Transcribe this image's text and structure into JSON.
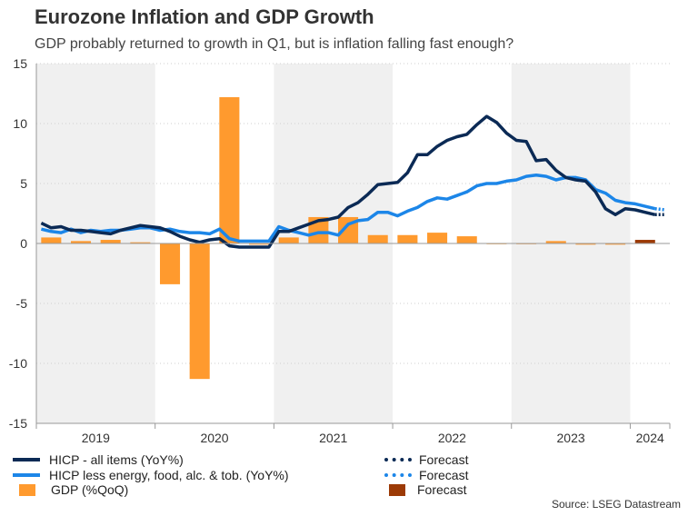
{
  "title": "Eurozone Inflation and GDP Growth",
  "subtitle": "GDP probably returned to growth in Q1, but is inflation falling fast enough?",
  "source": "Source: LSEG Datastream",
  "legend": {
    "hicp": "HICP - all items (YoY%)",
    "core": "HICP less energy, food, alc. & tob. (YoY%)",
    "gdp": "GDP (%QoQ)",
    "hicp_fc": "Forecast",
    "core_fc": "Forecast",
    "gdp_fc": "Forecast"
  },
  "colors": {
    "hicp": "#0b2a55",
    "core": "#1c86e8",
    "gdp": "#ff9a2e",
    "gdp_forecast": "#9c3a06",
    "shade": "#f0f0f0"
  },
  "chart_data": {
    "type": "bar+line",
    "ylim": [
      -15,
      15
    ],
    "y_ticks": [
      15,
      10,
      5,
      0,
      -5,
      -10,
      -15
    ],
    "x_range": [
      "2019-01",
      "2024-04"
    ],
    "year_labels": [
      "2019",
      "2020",
      "2021",
      "2022",
      "2023",
      "2024"
    ],
    "series": [
      {
        "name": "HICP - all items (YoY%)",
        "type": "line",
        "x": [
          "2019-01",
          "2019-02",
          "2019-03",
          "2019-04",
          "2019-05",
          "2019-06",
          "2019-07",
          "2019-08",
          "2019-09",
          "2019-10",
          "2019-11",
          "2019-12",
          "2020-01",
          "2020-02",
          "2020-03",
          "2020-04",
          "2020-05",
          "2020-06",
          "2020-07",
          "2020-08",
          "2020-09",
          "2020-10",
          "2020-11",
          "2020-12",
          "2021-01",
          "2021-02",
          "2021-03",
          "2021-04",
          "2021-05",
          "2021-06",
          "2021-07",
          "2021-08",
          "2021-09",
          "2021-10",
          "2021-11",
          "2021-12",
          "2022-01",
          "2022-02",
          "2022-03",
          "2022-04",
          "2022-05",
          "2022-06",
          "2022-07",
          "2022-08",
          "2022-09",
          "2022-10",
          "2022-11",
          "2022-12",
          "2023-01",
          "2023-02",
          "2023-03",
          "2023-04",
          "2023-05",
          "2023-06",
          "2023-07",
          "2023-08",
          "2023-09",
          "2023-10",
          "2023-11",
          "2023-12",
          "2024-01",
          "2024-02",
          "2024-03"
        ],
        "values": [
          1.7,
          1.3,
          1.4,
          1.1,
          1.1,
          1.0,
          0.9,
          0.8,
          1.1,
          1.3,
          1.5,
          1.4,
          1.3,
          1.0,
          0.6,
          0.3,
          0.1,
          0.3,
          0.4,
          -0.2,
          -0.3,
          -0.3,
          -0.3,
          -0.3,
          1.0,
          1.0,
          1.3,
          1.6,
          1.9,
          2.0,
          2.2,
          3.0,
          3.4,
          4.1,
          4.9,
          5.0,
          5.1,
          5.9,
          7.4,
          7.4,
          8.1,
          8.6,
          8.9,
          9.1,
          9.9,
          10.6,
          10.1,
          9.2,
          8.6,
          8.5,
          6.9,
          7.0,
          6.1,
          5.5,
          5.3,
          5.2,
          4.3,
          2.9,
          2.4,
          2.9,
          2.8,
          2.6,
          2.4
        ]
      },
      {
        "name": "Forecast",
        "type": "line",
        "style": "dotted",
        "x": [
          "2024-03",
          "2024-04"
        ],
        "values": [
          2.4,
          2.4
        ]
      },
      {
        "name": "HICP less energy, food, alc. & tob. (YoY%)",
        "type": "line",
        "x": [
          "2019-01",
          "2019-02",
          "2019-03",
          "2019-04",
          "2019-05",
          "2019-06",
          "2019-07",
          "2019-08",
          "2019-09",
          "2019-10",
          "2019-11",
          "2019-12",
          "2020-01",
          "2020-02",
          "2020-03",
          "2020-04",
          "2020-05",
          "2020-06",
          "2020-07",
          "2020-08",
          "2020-09",
          "2020-10",
          "2020-11",
          "2020-12",
          "2021-01",
          "2021-02",
          "2021-03",
          "2021-04",
          "2021-05",
          "2021-06",
          "2021-07",
          "2021-08",
          "2021-09",
          "2021-10",
          "2021-11",
          "2021-12",
          "2022-01",
          "2022-02",
          "2022-03",
          "2022-04",
          "2022-05",
          "2022-06",
          "2022-07",
          "2022-08",
          "2022-09",
          "2022-10",
          "2022-11",
          "2022-12",
          "2023-01",
          "2023-02",
          "2023-03",
          "2023-04",
          "2023-05",
          "2023-06",
          "2023-07",
          "2023-08",
          "2023-09",
          "2023-10",
          "2023-11",
          "2023-12",
          "2024-01",
          "2024-02",
          "2024-03"
        ],
        "values": [
          1.2,
          1.0,
          0.9,
          1.2,
          0.9,
          1.1,
          1.0,
          1.1,
          1.1,
          1.2,
          1.3,
          1.3,
          1.1,
          1.2,
          1.0,
          0.9,
          0.9,
          0.8,
          1.2,
          0.4,
          0.2,
          0.2,
          0.2,
          0.2,
          1.4,
          1.1,
          0.9,
          0.7,
          0.9,
          0.9,
          0.7,
          1.6,
          1.9,
          2.0,
          2.6,
          2.6,
          2.3,
          2.7,
          3.0,
          3.5,
          3.8,
          3.7,
          4.0,
          4.3,
          4.8,
          5.0,
          5.0,
          5.2,
          5.3,
          5.6,
          5.7,
          5.6,
          5.3,
          5.5,
          5.5,
          5.3,
          4.5,
          4.2,
          3.6,
          3.4,
          3.3,
          3.1,
          2.9
        ]
      },
      {
        "name": "Forecast",
        "type": "line",
        "style": "dotted",
        "x": [
          "2024-03",
          "2024-04"
        ],
        "values": [
          2.9,
          2.8
        ]
      },
      {
        "name": "GDP (%QoQ)",
        "type": "bar",
        "x": [
          "2019Q1",
          "2019Q2",
          "2019Q3",
          "2019Q4",
          "2020Q1",
          "2020Q2",
          "2020Q3",
          "2020Q4",
          "2021Q1",
          "2021Q2",
          "2021Q3",
          "2021Q4",
          "2022Q1",
          "2022Q2",
          "2022Q3",
          "2022Q4",
          "2023Q1",
          "2023Q2",
          "2023Q3",
          "2023Q4"
        ],
        "values": [
          0.5,
          0.2,
          0.3,
          0.1,
          -3.4,
          -11.3,
          12.2,
          -0.1,
          0.5,
          2.2,
          2.2,
          0.7,
          0.7,
          0.9,
          0.6,
          -0.05,
          0.0,
          0.2,
          -0.1,
          -0.1
        ]
      },
      {
        "name": "Forecast",
        "type": "bar",
        "x": [
          "2024Q1"
        ],
        "values": [
          0.3
        ]
      }
    ]
  }
}
